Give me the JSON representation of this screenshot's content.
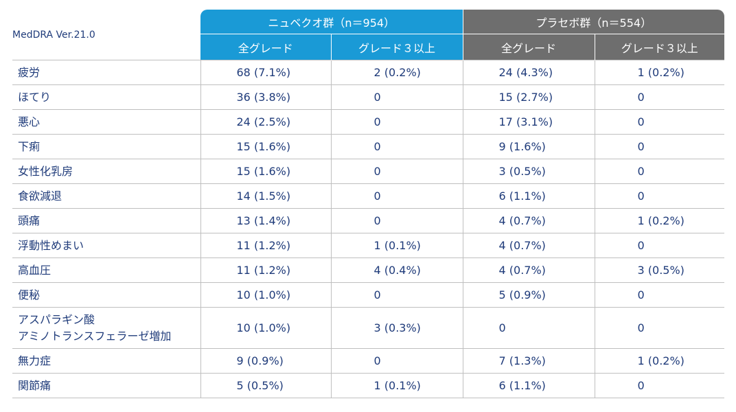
{
  "table": {
    "meddra_label": "MedDRA Ver.21.0",
    "groups": [
      {
        "label": "ニュベクオ群（n＝954）",
        "color": "#1a9ad6"
      },
      {
        "label": "プラセボ群（n＝554）",
        "color": "#6e6e6e"
      }
    ],
    "subheaders": [
      "全グレード",
      "グレード３以上",
      "全グレード",
      "グレード３以上"
    ],
    "rows": [
      {
        "name": [
          "疲労"
        ],
        "values": [
          "68 (7.1%)",
          "2 (0.2%)",
          "24 (4.3%)",
          "1 (0.2%)"
        ]
      },
      {
        "name": [
          "ほてり"
        ],
        "values": [
          "36 (3.8%)",
          "0",
          "15 (2.7%)",
          "0"
        ]
      },
      {
        "name": [
          "悪心"
        ],
        "values": [
          "24 (2.5%)",
          "0",
          "17 (3.1%)",
          "0"
        ]
      },
      {
        "name": [
          "下痢"
        ],
        "values": [
          "15 (1.6%)",
          "0",
          "9 (1.6%)",
          "0"
        ]
      },
      {
        "name": [
          "女性化乳房"
        ],
        "values": [
          "15 (1.6%)",
          "0",
          "3 (0.5%)",
          "0"
        ]
      },
      {
        "name": [
          "食欲減退"
        ],
        "values": [
          "14 (1.5%)",
          "0",
          "6 (1.1%)",
          "0"
        ]
      },
      {
        "name": [
          "頭痛"
        ],
        "values": [
          "13 (1.4%)",
          "0",
          "4 (0.7%)",
          "1 (0.2%)"
        ]
      },
      {
        "name": [
          "浮動性めまい"
        ],
        "values": [
          "11 (1.2%)",
          "1 (0.1%)",
          "4 (0.7%)",
          "0"
        ]
      },
      {
        "name": [
          "高血圧"
        ],
        "values": [
          "11 (1.2%)",
          "4 (0.4%)",
          "4 (0.7%)",
          "3 (0.5%)"
        ]
      },
      {
        "name": [
          "便秘"
        ],
        "values": [
          "10 (1.0%)",
          "0",
          "5 (0.9%)",
          "0"
        ]
      },
      {
        "name": [
          "アスパラギン酸",
          "アミノトランスフェラーゼ増加"
        ],
        "values": [
          "10 (1.0%)",
          "3 (0.3%)",
          "0",
          "0"
        ]
      },
      {
        "name": [
          "無力症"
        ],
        "values": [
          "9 (0.9%)",
          "0",
          "7 (1.3%)",
          "1 (0.2%)"
        ]
      },
      {
        "name": [
          "関節痛"
        ],
        "values": [
          "5 (0.5%)",
          "1 (0.1%)",
          "6 (1.1%)",
          "0"
        ]
      }
    ]
  }
}
